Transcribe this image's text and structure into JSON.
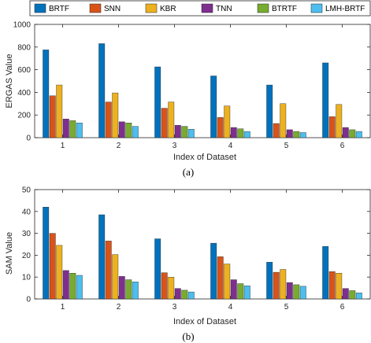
{
  "chart_data": [
    {
      "type": "bar",
      "categories": [
        "1",
        "2",
        "3",
        "4",
        "5",
        "6"
      ],
      "series": [
        {
          "name": "BRTF",
          "color": "#0072BD",
          "values": [
            775,
            830,
            625,
            545,
            465,
            660
          ]
        },
        {
          "name": "SNN",
          "color": "#D95319",
          "values": [
            370,
            315,
            260,
            178,
            125,
            185
          ]
        },
        {
          "name": "KBR",
          "color": "#EDB120",
          "values": [
            465,
            395,
            315,
            280,
            300,
            293
          ]
        },
        {
          "name": "TNN",
          "color": "#7E2F8E",
          "values": [
            165,
            140,
            110,
            90,
            70,
            90
          ]
        },
        {
          "name": "BTRTF",
          "color": "#77AC30",
          "values": [
            150,
            130,
            100,
            78,
            55,
            70
          ]
        },
        {
          "name": "LMH-BRTF",
          "color": "#4DBEEE",
          "values": [
            130,
            100,
            75,
            55,
            45,
            55
          ]
        }
      ],
      "xlabel": "Index of Dataset",
      "ylabel": "ERGAS Value",
      "ylim": [
        0,
        1000
      ],
      "yticks": [
        "0",
        "200",
        "400",
        "600",
        "800",
        "1000"
      ],
      "caption": "(a)",
      "legend": "top"
    },
    {
      "type": "bar",
      "categories": [
        "1",
        "2",
        "3",
        "4",
        "5",
        "6"
      ],
      "series": [
        {
          "name": "BRTF",
          "color": "#0072BD",
          "values": [
            42,
            38.5,
            27.5,
            25.5,
            16.8,
            24
          ]
        },
        {
          "name": "SNN",
          "color": "#D95319",
          "values": [
            30,
            26.5,
            12,
            19.3,
            12.2,
            12.5
          ]
        },
        {
          "name": "KBR",
          "color": "#EDB120",
          "values": [
            24.5,
            20.3,
            10,
            16,
            13.5,
            11.8
          ]
        },
        {
          "name": "TNN",
          "color": "#7E2F8E",
          "values": [
            13,
            10.3,
            4.8,
            8.8,
            7.5,
            4.8
          ]
        },
        {
          "name": "BTRTF",
          "color": "#77AC30",
          "values": [
            11.8,
            8.8,
            4,
            7,
            6.5,
            3.8
          ]
        },
        {
          "name": "LMH-BRTF",
          "color": "#4DBEEE",
          "values": [
            10.8,
            7.8,
            3.2,
            6,
            5.8,
            2.8
          ]
        }
      ],
      "xlabel": "Index of Dataset",
      "ylabel": "SAM Value",
      "ylim": [
        0,
        50
      ],
      "yticks": [
        "0",
        "10",
        "20",
        "30",
        "40",
        "50"
      ],
      "caption": "(b)"
    }
  ]
}
